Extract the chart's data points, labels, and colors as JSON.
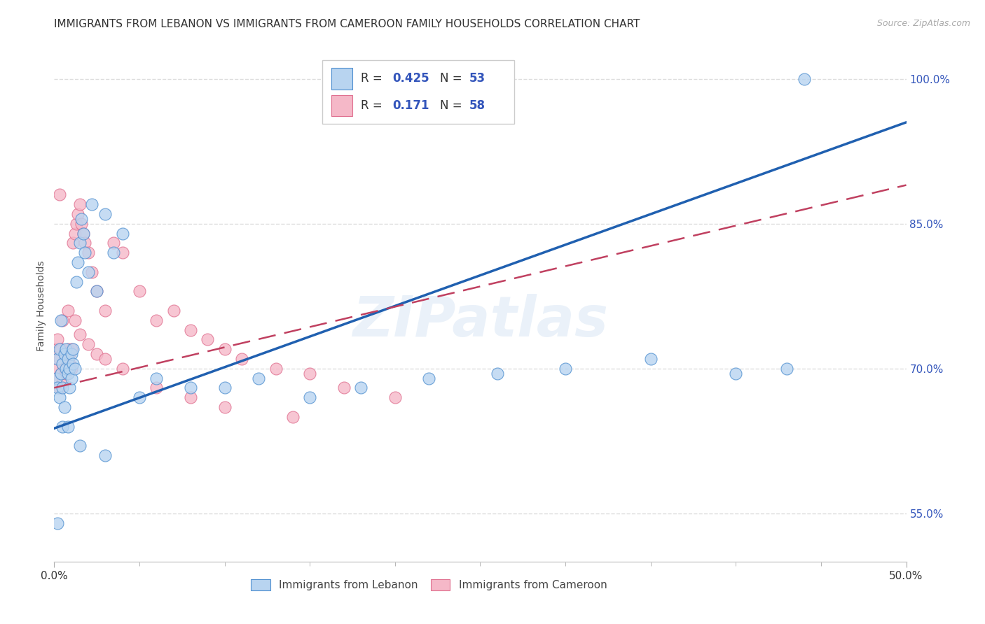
{
  "title": "IMMIGRANTS FROM LEBANON VS IMMIGRANTS FROM CAMEROON FAMILY HOUSEHOLDS CORRELATION CHART",
  "source": "Source: ZipAtlas.com",
  "ylabel": "Family Households",
  "xlim": [
    0.0,
    0.5
  ],
  "ylim": [
    0.5,
    1.03
  ],
  "xticks_major": [
    0.0,
    0.5
  ],
  "xticklabels_major": [
    "0.0%",
    "50.0%"
  ],
  "xticks_minor": [
    0.05,
    0.1,
    0.15,
    0.2,
    0.25,
    0.3,
    0.35,
    0.4,
    0.45
  ],
  "yticks": [
    0.55,
    0.7,
    0.85,
    1.0
  ],
  "yticklabels": [
    "55.0%",
    "70.0%",
    "85.0%",
    "100.0%"
  ],
  "yticks_grid": [
    0.55,
    0.7,
    0.85,
    1.0
  ],
  "blue_color": "#b8d4f0",
  "pink_color": "#f5b8c8",
  "blue_edge_color": "#5090d0",
  "pink_edge_color": "#e07090",
  "blue_line_color": "#2060b0",
  "pink_line_color": "#c04060",
  "title_fontsize": 11,
  "axis_label_fontsize": 10,
  "tick_fontsize": 11,
  "watermark_text": "ZIPatlas",
  "legend_r1_label": "R = ",
  "legend_r1_val": "0.425",
  "legend_n1_label": "N = ",
  "legend_n1_val": "53",
  "legend_r2_label": "R =  ",
  "legend_r2_val": "0.171",
  "legend_n2_label": "N = ",
  "legend_n2_val": "58",
  "legend_val_color": "#3355bb",
  "legend_label_color": "#333333",
  "leb_scatter_x": [
    0.001,
    0.002,
    0.002,
    0.003,
    0.003,
    0.004,
    0.004,
    0.005,
    0.005,
    0.006,
    0.006,
    0.007,
    0.007,
    0.008,
    0.008,
    0.009,
    0.009,
    0.01,
    0.01,
    0.011,
    0.011,
    0.012,
    0.013,
    0.014,
    0.015,
    0.016,
    0.017,
    0.018,
    0.02,
    0.022,
    0.025,
    0.03,
    0.035,
    0.04,
    0.05,
    0.06,
    0.08,
    0.1,
    0.12,
    0.15,
    0.18,
    0.22,
    0.26,
    0.3,
    0.35,
    0.4,
    0.43,
    0.44,
    0.002,
    0.005,
    0.008,
    0.015,
    0.03
  ],
  "leb_scatter_y": [
    0.69,
    0.71,
    0.68,
    0.72,
    0.67,
    0.695,
    0.75,
    0.705,
    0.68,
    0.715,
    0.66,
    0.7,
    0.72,
    0.695,
    0.71,
    0.68,
    0.7,
    0.715,
    0.69,
    0.705,
    0.72,
    0.7,
    0.79,
    0.81,
    0.83,
    0.855,
    0.84,
    0.82,
    0.8,
    0.87,
    0.78,
    0.86,
    0.82,
    0.84,
    0.67,
    0.69,
    0.68,
    0.68,
    0.69,
    0.67,
    0.68,
    0.69,
    0.695,
    0.7,
    0.71,
    0.695,
    0.7,
    1.0,
    0.54,
    0.64,
    0.64,
    0.62,
    0.61
  ],
  "cam_scatter_x": [
    0.001,
    0.001,
    0.002,
    0.002,
    0.003,
    0.003,
    0.004,
    0.004,
    0.005,
    0.005,
    0.006,
    0.006,
    0.007,
    0.007,
    0.008,
    0.008,
    0.009,
    0.009,
    0.01,
    0.01,
    0.011,
    0.012,
    0.013,
    0.014,
    0.015,
    0.016,
    0.017,
    0.018,
    0.02,
    0.022,
    0.025,
    0.03,
    0.035,
    0.04,
    0.05,
    0.06,
    0.07,
    0.08,
    0.09,
    0.1,
    0.11,
    0.13,
    0.15,
    0.17,
    0.2,
    0.003,
    0.005,
    0.008,
    0.012,
    0.015,
    0.02,
    0.025,
    0.03,
    0.04,
    0.06,
    0.08,
    0.1,
    0.14
  ],
  "cam_scatter_y": [
    0.69,
    0.72,
    0.7,
    0.73,
    0.68,
    0.71,
    0.695,
    0.72,
    0.685,
    0.705,
    0.7,
    0.715,
    0.695,
    0.71,
    0.7,
    0.72,
    0.705,
    0.715,
    0.7,
    0.72,
    0.83,
    0.84,
    0.85,
    0.86,
    0.87,
    0.85,
    0.84,
    0.83,
    0.82,
    0.8,
    0.78,
    0.76,
    0.83,
    0.82,
    0.78,
    0.75,
    0.76,
    0.74,
    0.73,
    0.72,
    0.71,
    0.7,
    0.695,
    0.68,
    0.67,
    0.88,
    0.75,
    0.76,
    0.75,
    0.735,
    0.725,
    0.715,
    0.71,
    0.7,
    0.68,
    0.67,
    0.66,
    0.65
  ],
  "leb_line_x": [
    0.0,
    0.5
  ],
  "leb_line_y": [
    0.638,
    0.955
  ],
  "cam_line_x": [
    0.0,
    0.5
  ],
  "cam_line_y": [
    0.68,
    0.89
  ]
}
